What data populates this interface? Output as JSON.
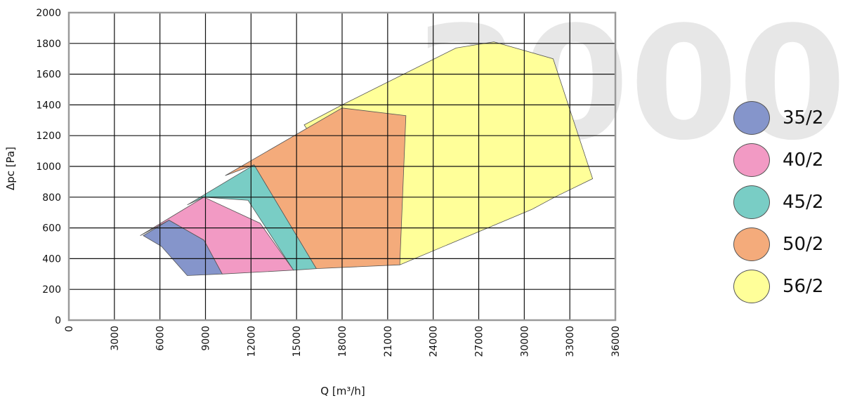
{
  "watermark": "3000",
  "chart_data": {
    "type": "area",
    "xlabel": "Q [m³/h]",
    "ylabel": "Δpc [Pa]",
    "xlim": [
      0,
      36000
    ],
    "ylim": [
      0,
      2000
    ],
    "x_ticks": [
      0,
      3000,
      6000,
      9000,
      12000,
      15000,
      18000,
      21000,
      24000,
      27000,
      30000,
      33000,
      36000
    ],
    "y_ticks": [
      0,
      200,
      400,
      600,
      800,
      1000,
      1200,
      1400,
      1600,
      1800,
      2000
    ],
    "grid": true,
    "legend_position": "right",
    "series": [
      {
        "name": "56/2",
        "color": "#ffff99",
        "points": [
          [
            15500,
            1270
          ],
          [
            18000,
            1400
          ],
          [
            25500,
            1770
          ],
          [
            28000,
            1810
          ],
          [
            31900,
            1700
          ],
          [
            34500,
            920
          ],
          [
            32000,
            800
          ],
          [
            30500,
            720
          ],
          [
            21800,
            360
          ]
        ]
      },
      {
        "name": "50/2",
        "color": "#f4ab7b",
        "points": [
          [
            10300,
            940
          ],
          [
            18000,
            1380
          ],
          [
            22200,
            1330
          ],
          [
            21800,
            360
          ],
          [
            16300,
            335
          ],
          [
            12200,
            1010
          ]
        ]
      },
      {
        "name": "45/2",
        "color": "#79cdc5",
        "points": [
          [
            7800,
            750
          ],
          [
            12200,
            1010
          ],
          [
            16300,
            335
          ],
          [
            14800,
            325
          ],
          [
            11800,
            780
          ],
          [
            8900,
            800
          ]
        ]
      },
      {
        "name": "40/2",
        "color": "#f29ac4",
        "points": [
          [
            4700,
            550
          ],
          [
            8900,
            800
          ],
          [
            12600,
            630
          ],
          [
            14800,
            325
          ],
          [
            10100,
            300
          ],
          [
            8900,
            520
          ],
          [
            6600,
            650
          ]
        ]
      },
      {
        "name": "35/2",
        "color": "#8595cb",
        "points": [
          [
            4900,
            550
          ],
          [
            6600,
            650
          ],
          [
            8900,
            520
          ],
          [
            10100,
            300
          ],
          [
            7800,
            290
          ],
          [
            6100,
            480
          ]
        ]
      }
    ],
    "legend_order": [
      "35/2",
      "40/2",
      "45/2",
      "50/2",
      "56/2"
    ]
  }
}
